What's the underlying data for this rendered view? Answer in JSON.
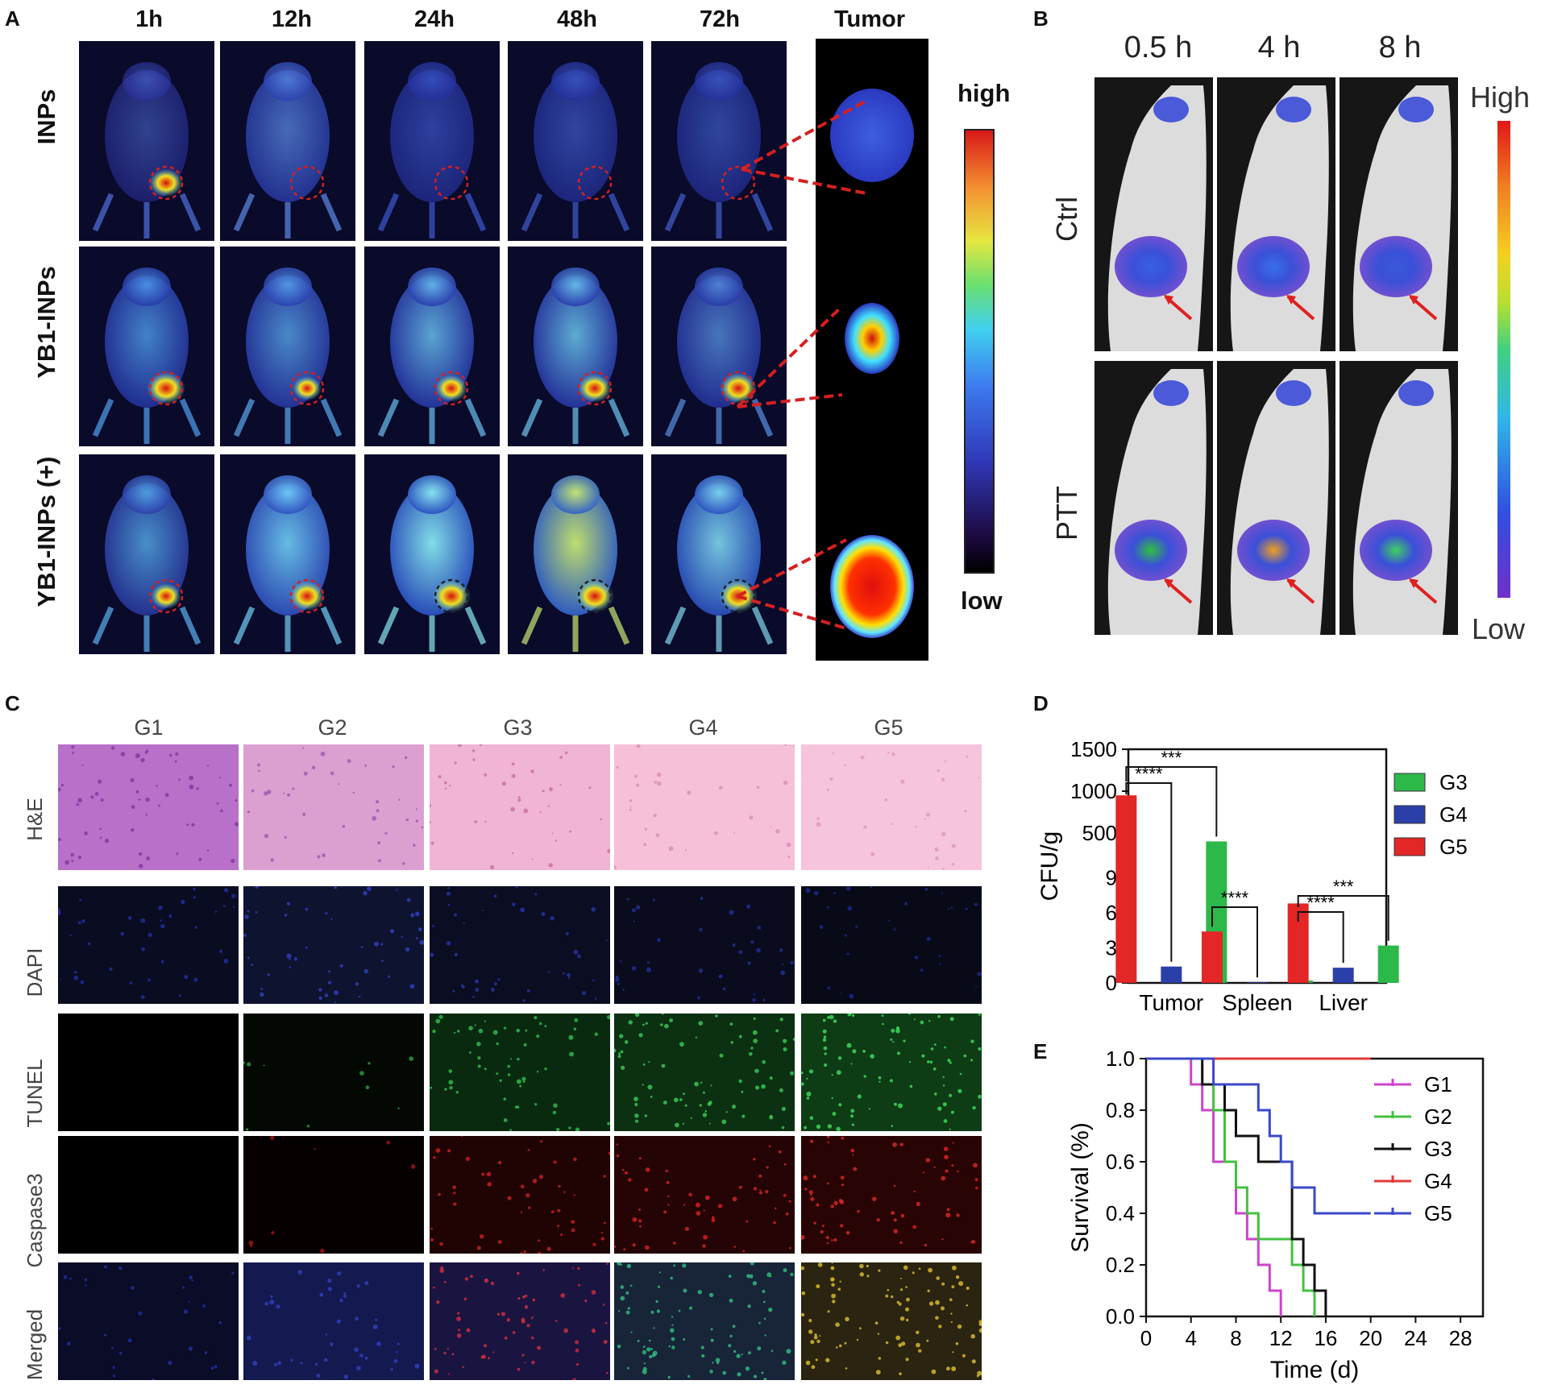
{
  "panel_labels": {
    "a": "A",
    "b": "B",
    "c": "C",
    "d": "D",
    "e": "E"
  },
  "panelA": {
    "timepoints": [
      "1h",
      "12h",
      "24h",
      "48h",
      "72h"
    ],
    "tumor_header": "Tumor",
    "rows": [
      "INPs",
      "YB1-INPs",
      "YB1-INPs (+)"
    ],
    "scale_high": "high",
    "scale_low": "low"
  },
  "panelB": {
    "timepoints": [
      "0.5 h",
      "4 h",
      "8 h"
    ],
    "rows": [
      "Ctrl",
      "PTT"
    ],
    "scale_high": "High",
    "scale_low": "Low"
  },
  "panelC": {
    "groups": [
      "G1",
      "G2",
      "G3",
      "G4",
      "G5"
    ],
    "rows": [
      "H&E",
      "DAPI",
      "TUNEL",
      "Caspase3",
      "Merged"
    ]
  },
  "colors": {
    "g3_bar": "#2db84a",
    "g4_bar": "#2b3fa8",
    "g5_bar": "#e32626"
  },
  "chart_data": [
    {
      "panel": "D",
      "type": "bar",
      "categories": [
        "Tumor",
        "Spleen",
        "Liver"
      ],
      "ylabel": "CFU/g",
      "axis_break": {
        "lower": [
          0,
          10
        ],
        "upper": [
          250,
          1500
        ]
      },
      "yticks_lower": [
        0,
        3,
        6,
        9
      ],
      "yticks_upper": [
        500,
        1000,
        1500
      ],
      "series": [
        {
          "name": "G5",
          "color": "#e32626",
          "values": [
            950,
            4.4,
            6.8
          ]
        },
        {
          "name": "G4",
          "color": "#2b3fa8",
          "values": [
            1.4,
            0.05,
            1.3
          ]
        },
        {
          "name": "G3",
          "color": "#2db84a",
          "values": [
            400,
            0.2,
            3.2
          ]
        }
      ],
      "legend_order": [
        "G3",
        "G4",
        "G5"
      ],
      "legend_position": "top-right",
      "significance": [
        "***",
        "****",
        "****",
        "***",
        "****"
      ]
    },
    {
      "panel": "E",
      "type": "line",
      "xlabel": "Time (d)",
      "ylabel": "Survival (%)",
      "xlim": [
        0,
        30
      ],
      "ylim": [
        0,
        1.0
      ],
      "xticks": [
        0,
        4,
        8,
        12,
        16,
        20,
        24,
        28
      ],
      "yticks": [
        "0.0",
        "0.2",
        "0.4",
        "0.6",
        "0.8",
        "1.0"
      ],
      "legend_position": "top-right",
      "series": [
        {
          "name": "G1",
          "color": "#cc44cc",
          "points": [
            [
              0,
              1
            ],
            [
              4,
              1
            ],
            [
              4,
              0.9
            ],
            [
              5,
              0.9
            ],
            [
              5,
              0.8
            ],
            [
              6,
              0.8
            ],
            [
              6,
              0.6
            ],
            [
              8,
              0.6
            ],
            [
              8,
              0.4
            ],
            [
              9,
              0.4
            ],
            [
              9,
              0.3
            ],
            [
              10,
              0.3
            ],
            [
              10,
              0.2
            ],
            [
              11,
              0.2
            ],
            [
              11,
              0.1
            ],
            [
              12,
              0.1
            ],
            [
              12,
              0
            ]
          ]
        },
        {
          "name": "G2",
          "color": "#44c040",
          "points": [
            [
              0,
              1
            ],
            [
              5,
              1
            ],
            [
              5,
              0.9
            ],
            [
              6,
              0.9
            ],
            [
              6,
              0.8
            ],
            [
              7,
              0.8
            ],
            [
              7,
              0.6
            ],
            [
              8,
              0.6
            ],
            [
              8,
              0.5
            ],
            [
              9,
              0.5
            ],
            [
              9,
              0.4
            ],
            [
              10,
              0.4
            ],
            [
              10,
              0.3
            ],
            [
              13,
              0.3
            ],
            [
              13,
              0.2
            ],
            [
              14,
              0.2
            ],
            [
              14,
              0.1
            ],
            [
              15,
              0.1
            ],
            [
              15,
              0
            ]
          ]
        },
        {
          "name": "G3",
          "color": "#111111",
          "points": [
            [
              0,
              1
            ],
            [
              5,
              1
            ],
            [
              5,
              0.9
            ],
            [
              7,
              0.9
            ],
            [
              7,
              0.8
            ],
            [
              8,
              0.8
            ],
            [
              8,
              0.7
            ],
            [
              10,
              0.7
            ],
            [
              10,
              0.6
            ],
            [
              13,
              0.6
            ],
            [
              13,
              0.3
            ],
            [
              14,
              0.3
            ],
            [
              14,
              0.2
            ],
            [
              15,
              0.2
            ],
            [
              15,
              0.1
            ],
            [
              16,
              0.1
            ],
            [
              16,
              0
            ]
          ]
        },
        {
          "name": "G4",
          "color": "#e23a3a",
          "points": [
            [
              0,
              1
            ],
            [
              20,
              1
            ]
          ]
        },
        {
          "name": "G5",
          "color": "#3a48c8",
          "points": [
            [
              0,
              1
            ],
            [
              6,
              1
            ],
            [
              6,
              0.9
            ],
            [
              10,
              0.9
            ],
            [
              10,
              0.8
            ],
            [
              11,
              0.8
            ],
            [
              11,
              0.7
            ],
            [
              12,
              0.7
            ],
            [
              12,
              0.6
            ],
            [
              13,
              0.6
            ],
            [
              13,
              0.5
            ],
            [
              15,
              0.5
            ],
            [
              15,
              0.4
            ],
            [
              20,
              0.4
            ]
          ]
        }
      ]
    }
  ]
}
